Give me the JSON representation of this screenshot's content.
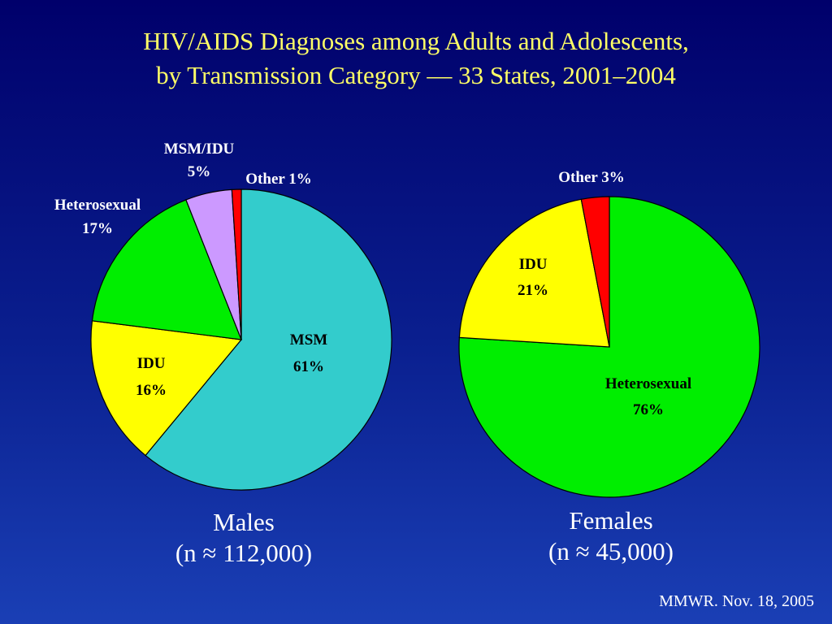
{
  "title": {
    "line1": "HIV/AIDS Diagnoses among Adults and Adolescents,",
    "line2": "by Transmission Category — 33 States, 2001–2004"
  },
  "chart_data": [
    {
      "type": "pie",
      "caption": {
        "name": "Males",
        "n": "(n ≈ 112,000)"
      },
      "slices": [
        {
          "label": "MSM",
          "value": 61,
          "text": "61%",
          "color": "#33cccc"
        },
        {
          "label": "IDU",
          "value": 16,
          "text": "16%",
          "color": "#ffff00"
        },
        {
          "label": "Heterosexual",
          "value": 17,
          "text": "17%",
          "color": "#00ee00"
        },
        {
          "label": "MSM/IDU",
          "value": 5,
          "text": "5%",
          "color": "#cc99ff"
        },
        {
          "label": "Other",
          "value": 1,
          "text": "Other 1%",
          "color": "#ff0000"
        }
      ]
    },
    {
      "type": "pie",
      "caption": {
        "name": "Females",
        "n": "(n ≈ 45,000)"
      },
      "slices": [
        {
          "label": "Heterosexual",
          "value": 76,
          "text": "76%",
          "color": "#00ee00"
        },
        {
          "label": "IDU",
          "value": 21,
          "text": "21%",
          "color": "#ffff00"
        },
        {
          "label": "Other",
          "value": 3,
          "text": "Other 3%",
          "color": "#ff0000"
        }
      ]
    }
  ],
  "source": "MMWR. Nov. 18, 2005"
}
